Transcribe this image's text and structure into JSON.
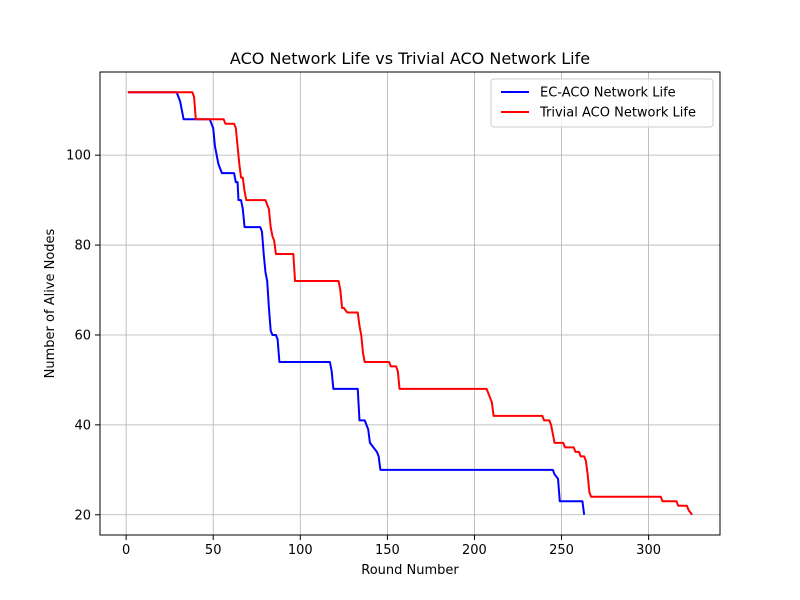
{
  "chart_data": {
    "type": "line",
    "title": "ACO Network Life vs Trivial ACO Network Life",
    "xlabel": "Round Number",
    "ylabel": "Number of Alive Nodes",
    "xlim": [
      -15,
      341
    ],
    "ylim": [
      15.5,
      118.5
    ],
    "xticks": [
      0,
      50,
      100,
      150,
      200,
      250,
      300
    ],
    "yticks": [
      20,
      40,
      60,
      80,
      100
    ],
    "grid": true,
    "legend_position": "upper right",
    "series": [
      {
        "name": "EC-ACO Network Life",
        "color": "#0000ff",
        "points": [
          [
            1,
            114
          ],
          [
            29,
            114
          ],
          [
            31,
            112
          ],
          [
            32,
            110
          ],
          [
            33,
            108
          ],
          [
            48,
            108
          ],
          [
            50,
            106
          ],
          [
            51,
            102
          ],
          [
            52,
            100
          ],
          [
            53,
            98
          ],
          [
            55,
            96
          ],
          [
            62,
            96
          ],
          [
            63,
            94
          ],
          [
            64,
            94
          ],
          [
            64.5,
            90
          ],
          [
            66,
            90
          ],
          [
            67,
            88
          ],
          [
            68,
            84
          ],
          [
            77,
            84
          ],
          [
            78,
            83
          ],
          [
            79,
            78
          ],
          [
            80,
            74
          ],
          [
            81,
            72
          ],
          [
            82,
            66
          ],
          [
            83,
            61
          ],
          [
            84,
            60
          ],
          [
            86,
            60
          ],
          [
            87,
            59
          ],
          [
            88,
            54
          ],
          [
            117,
            54
          ],
          [
            118,
            52
          ],
          [
            119,
            48
          ],
          [
            133,
            48
          ],
          [
            134,
            41
          ],
          [
            137,
            41
          ],
          [
            139,
            39
          ],
          [
            140,
            36
          ],
          [
            142,
            35
          ],
          [
            144,
            34
          ],
          [
            145,
            33
          ],
          [
            146,
            30
          ],
          [
            245,
            30
          ],
          [
            246,
            29
          ],
          [
            248,
            28
          ],
          [
            249,
            23
          ],
          [
            262,
            23
          ],
          [
            263,
            20
          ]
        ]
      },
      {
        "name": "Trivial ACO Network Life",
        "color": "#ff0000",
        "points": [
          [
            1,
            114
          ],
          [
            38,
            114
          ],
          [
            39,
            113
          ],
          [
            40,
            108
          ],
          [
            56,
            108
          ],
          [
            57,
            107
          ],
          [
            62,
            107
          ],
          [
            63,
            106
          ],
          [
            64,
            102
          ],
          [
            65,
            98
          ],
          [
            66,
            95
          ],
          [
            67,
            95
          ],
          [
            68,
            92
          ],
          [
            69,
            90
          ],
          [
            80,
            90
          ],
          [
            81,
            89
          ],
          [
            82,
            88
          ],
          [
            83,
            84
          ],
          [
            84,
            82
          ],
          [
            85,
            81
          ],
          [
            86,
            78
          ],
          [
            96,
            78
          ],
          [
            97,
            72
          ],
          [
            122,
            72
          ],
          [
            123,
            70
          ],
          [
            124,
            66
          ],
          [
            125,
            66
          ],
          [
            127,
            65
          ],
          [
            133,
            65
          ],
          [
            134,
            62
          ],
          [
            135,
            60
          ],
          [
            136,
            56
          ],
          [
            137,
            54
          ],
          [
            151,
            54
          ],
          [
            152,
            53
          ],
          [
            155,
            53
          ],
          [
            156,
            52
          ],
          [
            157,
            48
          ],
          [
            207,
            48
          ],
          [
            208,
            47
          ],
          [
            209,
            46
          ],
          [
            210,
            45
          ],
          [
            211,
            42
          ],
          [
            239,
            42
          ],
          [
            240,
            41
          ],
          [
            243,
            41
          ],
          [
            244,
            40
          ],
          [
            245,
            38
          ],
          [
            246,
            36
          ],
          [
            251,
            36
          ],
          [
            252,
            35
          ],
          [
            257,
            35
          ],
          [
            258,
            34
          ],
          [
            260,
            34
          ],
          [
            261,
            33
          ],
          [
            263,
            33
          ],
          [
            264,
            32
          ],
          [
            265,
            29
          ],
          [
            266,
            25
          ],
          [
            267,
            24
          ],
          [
            307,
            24
          ],
          [
            308,
            23
          ],
          [
            316,
            23
          ],
          [
            317,
            22
          ],
          [
            322,
            22
          ],
          [
            323,
            21
          ],
          [
            325,
            20
          ]
        ]
      }
    ]
  }
}
